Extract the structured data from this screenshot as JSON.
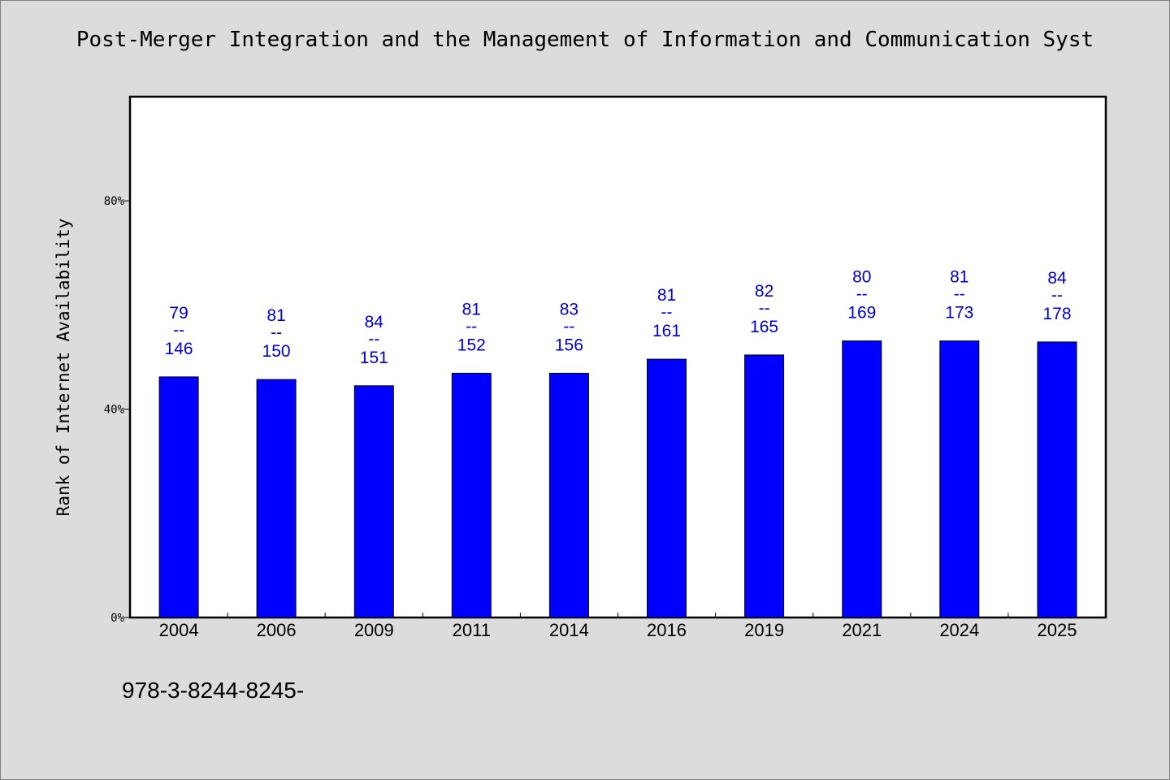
{
  "footer": {
    "text": "978-3-8244-8245-"
  },
  "chart_data": {
    "type": "bar",
    "title": "Post-Merger Integration and the Management of Information and Communication Syst",
    "ylabel": "Rank of Internet Availability",
    "xlabel": "",
    "ylim": [
      0,
      100
    ],
    "yticks": [
      0,
      40,
      80
    ],
    "ytick_labels": [
      "0%",
      "40%",
      "80%"
    ],
    "categories": [
      "2004",
      "2006",
      "2009",
      "2011",
      "2014",
      "2016",
      "2019",
      "2021",
      "2024",
      "2025"
    ],
    "values": [
      46.2,
      45.7,
      44.5,
      46.9,
      46.9,
      49.6,
      50.4,
      53.1,
      53.1,
      52.9
    ],
    "data_labels": [
      {
        "top": "79",
        "sep": "--",
        "bottom": "146"
      },
      {
        "top": "81",
        "sep": "--",
        "bottom": "150"
      },
      {
        "top": "84",
        "sep": "--",
        "bottom": "151"
      },
      {
        "top": "81",
        "sep": "--",
        "bottom": "152"
      },
      {
        "top": "83",
        "sep": "--",
        "bottom": "156"
      },
      {
        "top": "81",
        "sep": "--",
        "bottom": "161"
      },
      {
        "top": "82",
        "sep": "--",
        "bottom": "165"
      },
      {
        "top": "80",
        "sep": "--",
        "bottom": "169"
      },
      {
        "top": "81",
        "sep": "--",
        "bottom": "173"
      },
      {
        "top": "84",
        "sep": "--",
        "bottom": "178"
      }
    ],
    "grid": false,
    "colors": {
      "bar": "#0000ff",
      "bar_edge": "#000000",
      "label": "#0000cc",
      "background": "#dcdcdc",
      "plot_background": "#ffffff"
    }
  }
}
